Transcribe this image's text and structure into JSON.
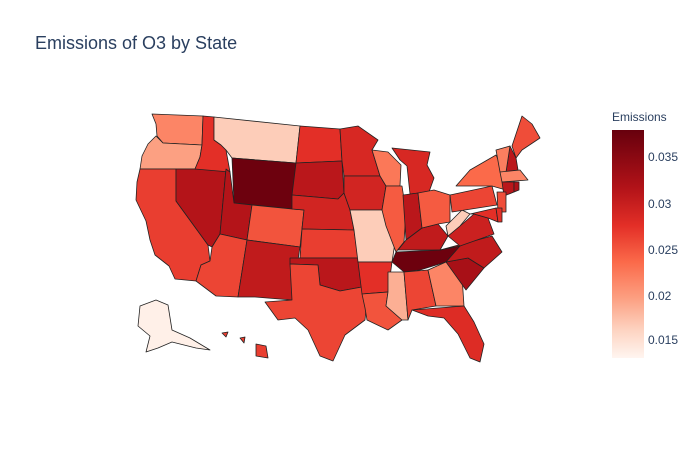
{
  "title": "Emissions of O3 by State",
  "colorbar": {
    "title": "Emissions",
    "ticks": [
      "0.035",
      "0.03",
      "0.025",
      "0.02",
      "0.015"
    ]
  },
  "colors": {
    "low": "#fff5f0",
    "high": "#67000d"
  },
  "states": {
    "WA": 0.0215,
    "OR": 0.0195,
    "CA": 0.0265,
    "NV": 0.0315,
    "ID": 0.0275,
    "MT": 0.0165,
    "WY": 0.0375,
    "UT": 0.0315,
    "AZ": 0.026,
    "CO": 0.025,
    "NM": 0.0305,
    "ND": 0.0275,
    "SD": 0.031,
    "NE": 0.029,
    "KS": 0.0265,
    "OK": 0.031,
    "TX": 0.026,
    "MN": 0.0285,
    "IA": 0.029,
    "MO": 0.0165,
    "AR": 0.0275,
    "LA": 0.025,
    "WI": 0.0225,
    "IL": 0.0245,
    "MS": 0.0185,
    "MI": 0.0285,
    "IN": 0.031,
    "KY": 0.0305,
    "TN": 0.0375,
    "AL": 0.026,
    "OH": 0.0245,
    "GA": 0.0215,
    "FL": 0.028,
    "SC": 0.0325,
    "NC": 0.0305,
    "VA": 0.0295,
    "WV": 0.0165,
    "PA": 0.026,
    "NY": 0.0235,
    "ME": 0.0255,
    "NH": 0.031,
    "VT": 0.022,
    "MA": 0.0215,
    "CT": 0.031,
    "NJ": 0.0255,
    "MD": 0.0275,
    "DE": 0.0275,
    "RI": 0.032,
    "AK": 0.0135,
    "HI": 0.0265
  }
}
